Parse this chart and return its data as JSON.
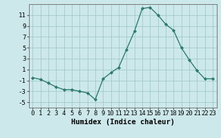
{
  "x": [
    0,
    1,
    2,
    3,
    4,
    5,
    6,
    7,
    8,
    9,
    10,
    11,
    12,
    13,
    14,
    15,
    16,
    17,
    18,
    19,
    20,
    21,
    22,
    23
  ],
  "y": [
    -0.5,
    -0.8,
    -1.5,
    -2.2,
    -2.7,
    -2.7,
    -3.0,
    -3.3,
    -4.5,
    -0.7,
    0.4,
    1.4,
    4.7,
    8.0,
    12.2,
    12.4,
    11.0,
    9.3,
    8.2,
    5.0,
    2.8,
    0.8,
    -0.7,
    -0.7
  ],
  "bg_color": "#cce8ea",
  "line_color": "#2d7a6e",
  "marker_color": "#2d7a6e",
  "grid_color_major": "#a0c8cc",
  "grid_color_minor": "#b8d8da",
  "xlabel": "Humidex (Indice chaleur)",
  "xlim": [
    -0.5,
    23.5
  ],
  "ylim": [
    -6,
    13
  ],
  "yticks": [
    -5,
    -3,
    -1,
    1,
    3,
    5,
    7,
    9,
    11
  ],
  "xticks": [
    0,
    1,
    2,
    3,
    4,
    5,
    6,
    7,
    8,
    9,
    10,
    11,
    12,
    13,
    14,
    15,
    16,
    17,
    18,
    19,
    20,
    21,
    22,
    23
  ],
  "tick_fontsize": 6.5,
  "label_fontsize": 7.5
}
